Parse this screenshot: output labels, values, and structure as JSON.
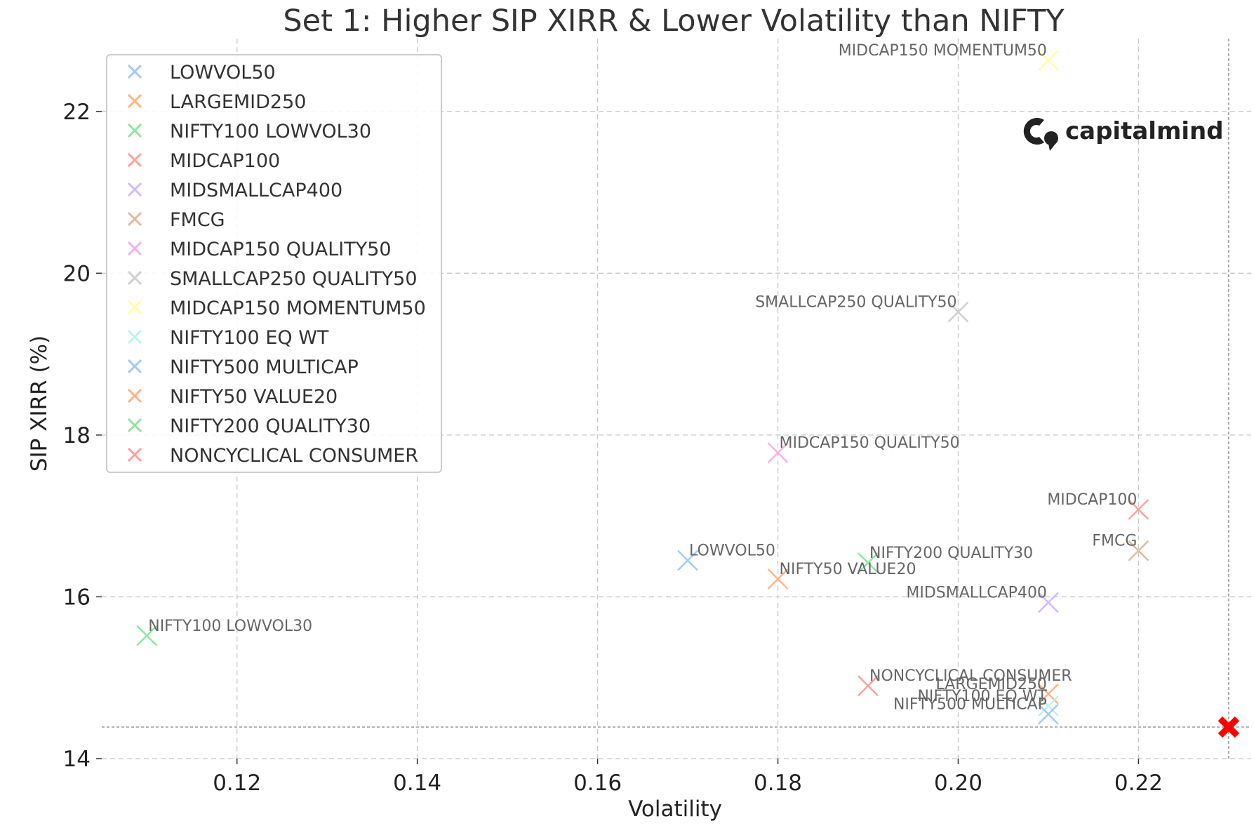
{
  "chart_data": {
    "type": "scatter",
    "title": "Set 1: Higher SIP XIRR & Lower Volatility than NIFTY",
    "xlabel": "Volatility",
    "ylabel": "SIP XIRR (%)",
    "xlim": [
      0.105,
      0.2325
    ],
    "ylim": [
      14,
      22.9
    ],
    "x_ticks": [
      {
        "value": 0.12,
        "label": "0.12"
      },
      {
        "value": 0.14,
        "label": "0.14"
      },
      {
        "value": 0.16,
        "label": "0.16"
      },
      {
        "value": 0.18,
        "label": "0.18"
      },
      {
        "value": 0.2,
        "label": "0.20"
      },
      {
        "value": 0.22,
        "label": "0.22"
      }
    ],
    "y_ticks": [
      {
        "value": 14,
        "label": "14"
      },
      {
        "value": 16,
        "label": "16"
      },
      {
        "value": 18,
        "label": "18"
      },
      {
        "value": 20,
        "label": "20"
      },
      {
        "value": 22,
        "label": "22"
      }
    ],
    "grid": true,
    "legend_position": "top-left",
    "series": [
      {
        "name": "LOWVOL50",
        "x": 0.17,
        "y": 16.45,
        "color": "#a1c9f4",
        "label_side": "right"
      },
      {
        "name": "LARGEMID250",
        "x": 0.21,
        "y": 14.8,
        "color": "#ffb482",
        "label_side": "left"
      },
      {
        "name": "NIFTY100 LOWVOL30",
        "x": 0.11,
        "y": 15.52,
        "color": "#8de5a1",
        "label_side": "right"
      },
      {
        "name": "MIDCAP100",
        "x": 0.22,
        "y": 17.08,
        "color": "#ff9f9b",
        "label_side": "left"
      },
      {
        "name": "MIDSMALLCAP400",
        "x": 0.21,
        "y": 15.93,
        "color": "#d0bbff",
        "label_side": "left"
      },
      {
        "name": "FMCG",
        "x": 0.22,
        "y": 16.57,
        "color": "#debb9b",
        "label_side": "left"
      },
      {
        "name": "MIDCAP150 QUALITY50",
        "x": 0.18,
        "y": 17.78,
        "color": "#fab0e4",
        "label_side": "right"
      },
      {
        "name": "SMALLCAP250 QUALITY50",
        "x": 0.2,
        "y": 19.52,
        "color": "#cfcfcf",
        "label_side": "left"
      },
      {
        "name": "MIDCAP150 MOMENTUM50",
        "x": 0.21,
        "y": 22.63,
        "color": "#fffea3",
        "label_side": "left"
      },
      {
        "name": "NIFTY100 EQ WT",
        "x": 0.21,
        "y": 14.65,
        "color": "#b9f2f0",
        "label_side": "left"
      },
      {
        "name": "NIFTY500 MULTICAP",
        "x": 0.21,
        "y": 14.55,
        "color": "#a1c9f4",
        "label_side": "left"
      },
      {
        "name": "NIFTY50 VALUE20",
        "x": 0.18,
        "y": 16.22,
        "color": "#ffb482",
        "label_side": "right"
      },
      {
        "name": "NIFTY200 QUALITY30",
        "x": 0.19,
        "y": 16.42,
        "color": "#8de5a1",
        "label_side": "right"
      },
      {
        "name": "NONCYCLICAL CONSUMER",
        "x": 0.19,
        "y": 14.9,
        "color": "#ff9f9b",
        "label_side": "right"
      }
    ],
    "benchmark": {
      "x": 0.23,
      "y": 14.39,
      "color": "#ff0000",
      "marker": "x"
    }
  },
  "branding": {
    "logo_text": "capitalmind"
  }
}
